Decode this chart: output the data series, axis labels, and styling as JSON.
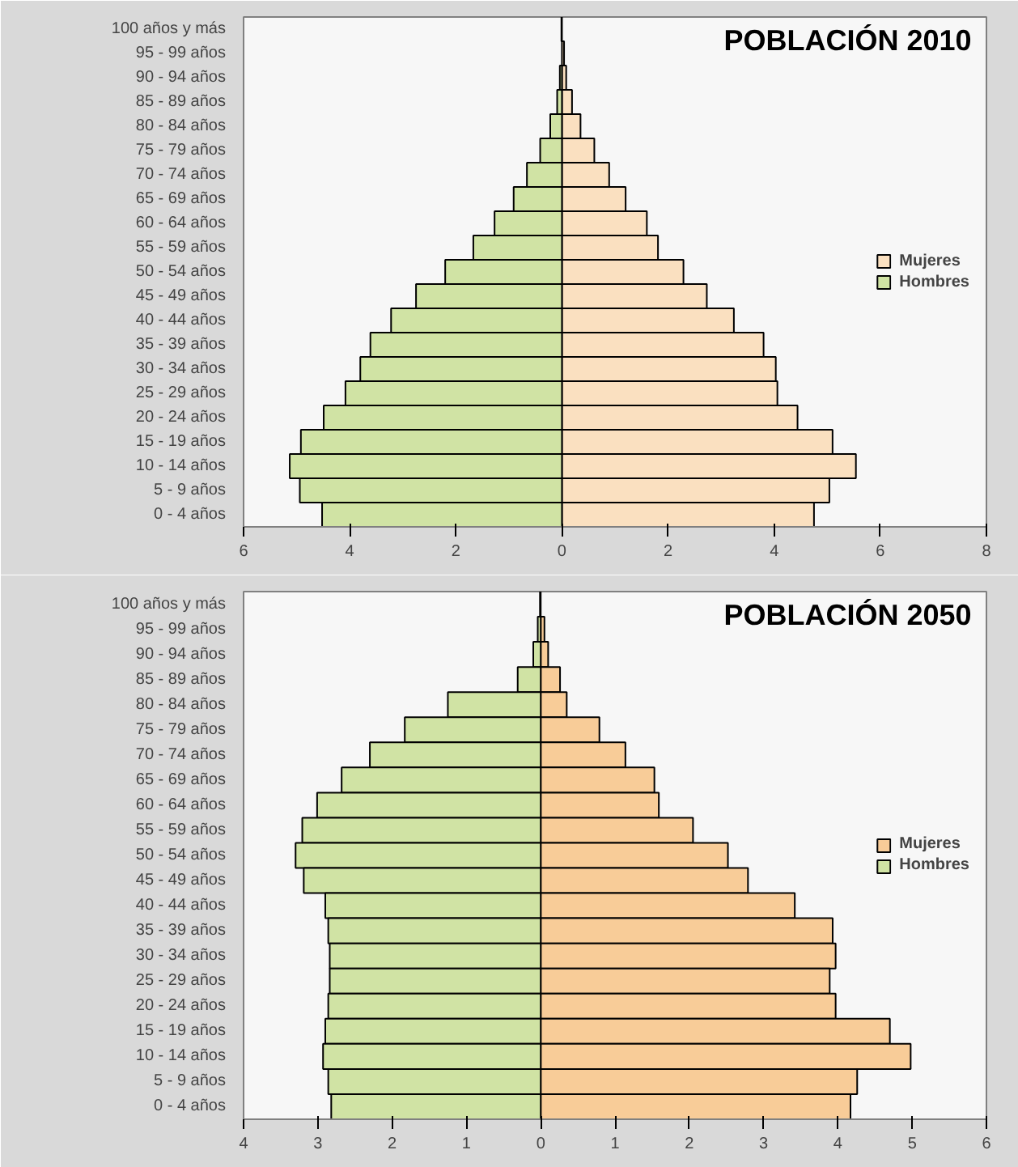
{
  "chart_data": [
    {
      "type": "bar",
      "orientation": "horizontal",
      "stacked": true,
      "title": "POBLACIÓN 2010",
      "legend": "right",
      "grid": false,
      "categories": [
        "100 años y más",
        "95 - 99 años",
        "90 - 94 años",
        "85 - 89 años",
        "80 - 84 años",
        "75 - 79 años",
        "70 - 74 años",
        "65 - 69 años",
        "60 - 64 años",
        "55 - 59 años",
        "50 - 54 años",
        "45 - 49 años",
        "40 - 44 años",
        "35 - 39 años",
        "30 - 34 años",
        "25 - 29 años",
        "20 - 24 años",
        "15 - 19 años",
        "10 - 14 años",
        "5 - 9 años",
        "0 - 4 años"
      ],
      "xlim": [
        -6,
        8
      ],
      "xticks": [
        {
          "value": -6,
          "label": "6"
        },
        {
          "value": -4,
          "label": "4"
        },
        {
          "value": -2,
          "label": "2"
        },
        0,
        2,
        4,
        6,
        8
      ],
      "series": [
        {
          "name": "Mujeres",
          "color": "#fae0c0",
          "values": [
            null,
            0.04,
            0.08,
            0.19,
            0.35,
            0.61,
            0.89,
            1.2,
            1.6,
            1.81,
            2.29,
            2.73,
            3.24,
            3.8,
            4.03,
            4.06,
            4.44,
            5.1,
            5.54,
            5.04,
            4.75
          ]
        },
        {
          "name": "Hombres",
          "color": "#d0e3a4",
          "values": [
            -0.01,
            null,
            -0.04,
            -0.09,
            -0.22,
            -0.41,
            -0.66,
            -0.91,
            -1.27,
            -1.67,
            -2.2,
            -2.75,
            -3.22,
            -3.61,
            -3.8,
            -4.08,
            -4.49,
            -4.92,
            -5.13,
            -4.94,
            -4.52
          ]
        }
      ]
    },
    {
      "type": "bar",
      "orientation": "horizontal",
      "stacked": true,
      "title": "POBLACIÓN 2050",
      "legend": "right",
      "grid": false,
      "categories": [
        "100 años y más",
        "95 - 99 años",
        "90 - 94 años",
        "85 - 89 años",
        "80 - 84 años",
        "75 - 79 años",
        "70 - 74 años",
        "65 - 69 años",
        "60 - 64 años",
        "55 - 59 años",
        "50 - 54 años",
        "45 - 49 años",
        "40 - 44 años",
        "35 - 39 años",
        "30 - 34 años",
        "25 - 29 años",
        "20 - 24 años",
        "15 - 19 años",
        "10 - 14 años",
        "5 - 9 años",
        "0 - 4 años"
      ],
      "xlim": [
        -4,
        6
      ],
      "xticks": [
        {
          "value": -4,
          "label": "4"
        },
        {
          "value": -3,
          "label": "3"
        },
        {
          "value": -2,
          "label": "2"
        },
        {
          "value": -1,
          "label": "1"
        },
        0,
        1,
        2,
        3,
        4,
        5,
        6
      ],
      "series": [
        {
          "name": "Mujeres",
          "color": "#f8cc98",
          "values": [
            null,
            0.05,
            0.1,
            0.26,
            0.35,
            0.79,
            1.14,
            1.53,
            1.59,
            2.05,
            2.52,
            2.79,
            3.42,
            3.93,
            3.97,
            3.89,
            3.97,
            4.7,
            4.98,
            4.26,
            4.17
          ]
        },
        {
          "name": "Hombres",
          "color": "#d0e3a4",
          "values": [
            -0.01,
            -0.04,
            -0.1,
            -0.31,
            -1.25,
            -1.83,
            -2.3,
            -2.68,
            -3.01,
            -3.21,
            -3.3,
            -3.19,
            -2.9,
            -2.86,
            -2.84,
            -2.84,
            -2.86,
            -2.9,
            -2.93,
            -2.86,
            -2.82
          ]
        }
      ]
    }
  ]
}
